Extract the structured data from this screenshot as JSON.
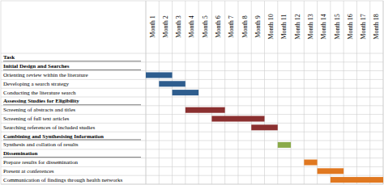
{
  "chart_data": {
    "type": "gantt",
    "orientation": "horizontal",
    "grid": true,
    "ylabel": "Task",
    "categories": [
      "Month 1",
      "Month 2",
      "Month 3",
      "Month 4",
      "Month 5",
      "Month 6",
      "Month 7",
      "Month 8",
      "Month 9",
      "Month 10",
      "Month 11",
      "Month 12",
      "Month 13",
      "Month 14",
      "Month 15",
      "Month 16",
      "Month 17",
      "Month 18"
    ],
    "xlim": [
      1,
      19
    ],
    "series": [
      {
        "name": "Initial Design and Searches",
        "color": "#2E5D8E",
        "tasks": [
          {
            "label": "Orienting review within the literature",
            "start": 1,
            "duration": 2
          },
          {
            "label": "Developing a search strategy",
            "start": 2,
            "duration": 2
          },
          {
            "label": "Conducting the literature search",
            "start": 3,
            "duration": 2
          }
        ]
      },
      {
        "name": "Assessing Studies for Eligibility",
        "color": "#8B3030",
        "tasks": [
          {
            "label": "Screening of abstracts and titles",
            "start": 4,
            "duration": 3
          },
          {
            "label": "Screening of full text articles",
            "start": 6,
            "duration": 4
          },
          {
            "label": "Searching references of included studies",
            "start": 9,
            "duration": 2
          }
        ]
      },
      {
        "name": "Combining and Synthesising Information",
        "color": "#8AAA4A",
        "tasks": [
          {
            "label": "Synthesis and collation of results",
            "start": 11,
            "duration": 1
          }
        ]
      },
      {
        "name": "Dissemination",
        "color": "#E07820",
        "tasks": [
          {
            "label": "Prepare results for dissemination",
            "start": 13,
            "duration": 1
          },
          {
            "label": "Present at conferences",
            "start": 14,
            "duration": 2
          },
          {
            "label": "Communication of findings through health networks",
            "start": 15,
            "duration": 4
          }
        ]
      }
    ]
  }
}
